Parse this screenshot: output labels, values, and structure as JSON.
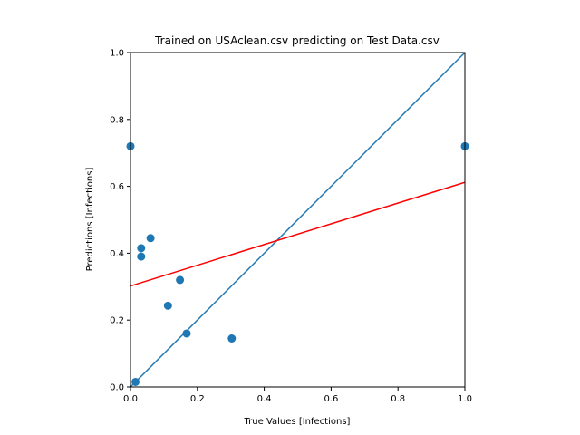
{
  "chart_data": {
    "type": "scatter",
    "title": "Trained on USAclean.csv predicting on Test Data.csv",
    "xlabel": "True Values [Infections]",
    "ylabel": "Predictions [Infections]",
    "xlim": [
      0.0,
      1.0
    ],
    "ylim": [
      0.0,
      1.0
    ],
    "x_ticks": [
      "0.0",
      "0.2",
      "0.4",
      "0.6",
      "0.8",
      "1.0"
    ],
    "y_ticks": [
      "0.0",
      "0.2",
      "0.4",
      "0.6",
      "0.8",
      "1.0"
    ],
    "grid": false,
    "legend": "none",
    "points": [
      {
        "x": 0.0,
        "y": 0.72
      },
      {
        "x": 0.015,
        "y": 0.015
      },
      {
        "x": 0.032,
        "y": 0.415
      },
      {
        "x": 0.032,
        "y": 0.39
      },
      {
        "x": 0.06,
        "y": 0.445
      },
      {
        "x": 0.112,
        "y": 0.243
      },
      {
        "x": 0.148,
        "y": 0.32
      },
      {
        "x": 0.168,
        "y": 0.16
      },
      {
        "x": 0.303,
        "y": 0.145
      },
      {
        "x": 1.0,
        "y": 0.72
      }
    ],
    "lines": [
      {
        "from": [
          0.0,
          0.0
        ],
        "to": [
          1.0,
          1.0
        ],
        "color": "#1f77b4"
      },
      {
        "from": [
          0.0,
          0.302
        ],
        "to": [
          1.0,
          0.612
        ],
        "color": "#ff0000"
      }
    ],
    "marker_color": "#1f77b4"
  }
}
